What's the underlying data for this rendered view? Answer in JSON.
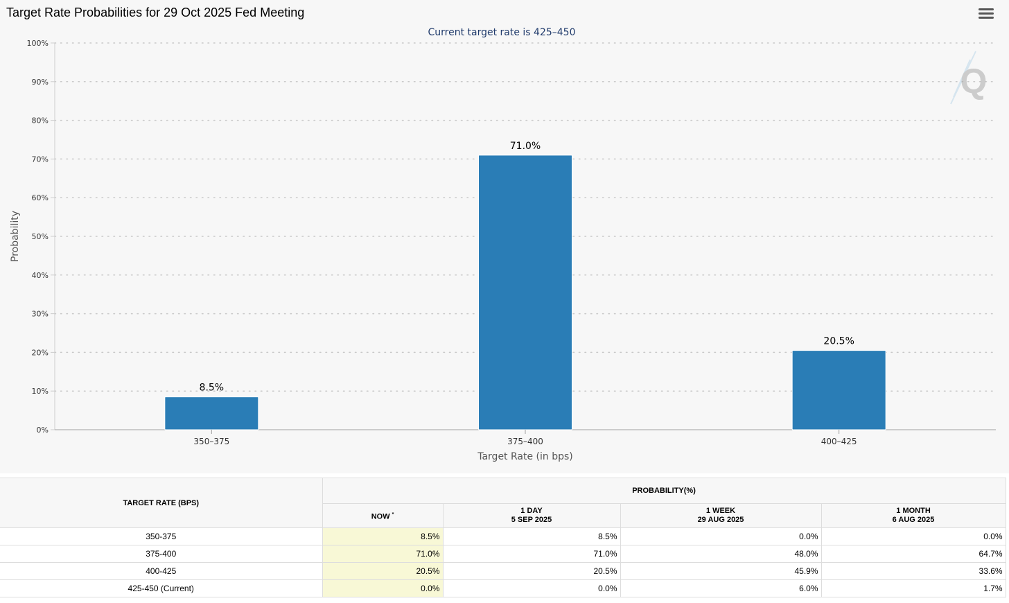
{
  "title": "Target Rate Probabilities for 29 Oct 2025 Fed Meeting",
  "menu_icon": "hamburger-menu-icon",
  "watermark_icon": "q-logo-icon",
  "chart_data": {
    "type": "bar",
    "title": "Target Rate Probabilities for 29 Oct 2025 Fed Meeting",
    "subtitle": "Current target rate is 425–450",
    "categories": [
      "350–375",
      "375–400",
      "400–425"
    ],
    "values": [
      8.5,
      71.0,
      20.5
    ],
    "data_labels": [
      "8.5%",
      "71.0%",
      "20.5%"
    ],
    "xlabel": "Target Rate (in bps)",
    "ylabel": "Probability",
    "ylim": [
      0,
      100
    ],
    "yticks": [
      0,
      10,
      20,
      30,
      40,
      50,
      60,
      70,
      80,
      90,
      100
    ],
    "ytick_labels": [
      "0%",
      "10%",
      "20%",
      "30%",
      "40%",
      "50%",
      "60%",
      "70%",
      "80%",
      "90%",
      "100%"
    ],
    "grid": true,
    "bar_color": "#2a7db6"
  },
  "table": {
    "rate_header": "TARGET RATE (BPS)",
    "prob_header": "PROBABILITY(%)",
    "col_now": "NOW",
    "col_now_sup": "*",
    "col_1day": "1 DAY",
    "col_1day_date": "5 SEP 2025",
    "col_1week": "1 WEEK",
    "col_1week_date": "29 AUG 2025",
    "col_1month": "1 MONTH",
    "col_1month_date": "6 AUG 2025",
    "rows": [
      {
        "rate": "350-375",
        "now": "8.5%",
        "day": "8.5%",
        "week": "0.0%",
        "month": "0.0%"
      },
      {
        "rate": "375-400",
        "now": "71.0%",
        "day": "71.0%",
        "week": "48.0%",
        "month": "64.7%"
      },
      {
        "rate": "400-425",
        "now": "20.5%",
        "day": "20.5%",
        "week": "45.9%",
        "month": "33.6%"
      },
      {
        "rate": "425-450 (Current)",
        "now": "0.0%",
        "day": "0.0%",
        "week": "6.0%",
        "month": "1.7%"
      }
    ],
    "now_highlight_color": "#f8f8d6"
  }
}
